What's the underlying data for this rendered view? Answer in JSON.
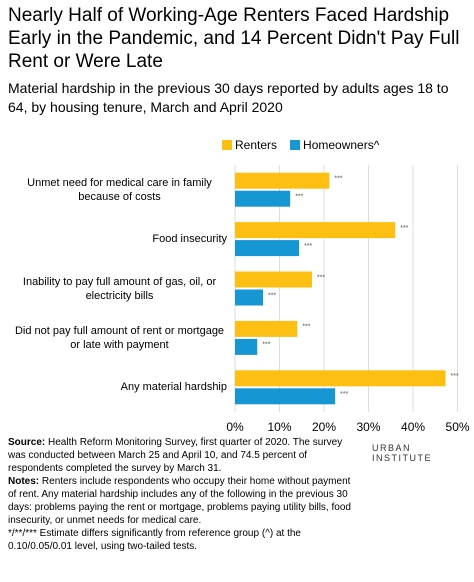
{
  "chart_data": {
    "type": "hbar",
    "title": "Nearly Half of Working-Age Renters Faced Hardship Early in the Pandemic, and 14 Percent Didn't Pay Full Rent or Were Late",
    "subtitle": "Material hardship in the previous 30 days reported by adults ages 18 to 64, by housing tenure, March and April 2020",
    "categories": [
      "Unmet need for medical care in family because of costs",
      "Food insecurity",
      "Inability to pay full amount of gas, oil, or electricity bills",
      "Did not pay full amount of rent or mortgage or late with payment",
      "Any material hardship"
    ],
    "series": [
      {
        "name": "Renters",
        "color": "#fdbf11",
        "values": [
          21.2,
          36.0,
          17.3,
          14.0,
          47.3
        ],
        "annotations": [
          "***",
          "***",
          "***",
          "***",
          "***"
        ]
      },
      {
        "name": "Homeowners^",
        "color": "#1696d2",
        "values": [
          12.4,
          14.4,
          6.3,
          5.0,
          22.5
        ],
        "annotations": [
          "***",
          "***",
          "***",
          "***",
          "***"
        ]
      }
    ],
    "xlim": [
      0,
      51
    ],
    "xticks": [
      {
        "value": 0,
        "label": "0%"
      },
      {
        "value": 10,
        "label": "10%"
      },
      {
        "value": 20,
        "label": "20%"
      },
      {
        "value": 30,
        "label": "30%"
      },
      {
        "value": 40,
        "label": "40%"
      },
      {
        "value": 50,
        "label": "50%"
      }
    ],
    "grid": true,
    "legend": "top"
  },
  "footer": {
    "source_label": "Source:",
    "source": "Health Reform Monitoring Survey, first quarter of 2020. The survey was conducted between March 25 and April 10, and 74.5 percent of respondents completed the survey by March 31.",
    "notes_label": "Notes:",
    "notes": "Renters include respondents who occupy their home without payment of rent. Any material hardship includes any of the following in the previous 30 days: problems paying the rent or mortgage, problems paying utility bills, food insecurity, or unmet needs for medical care.",
    "significance": "*/**/*** Estimate differs significantly from reference group (^) at the 0.10/0.05/0.01 level, using two-tailed tests.",
    "logo": "URBAN INSTITUTE"
  }
}
